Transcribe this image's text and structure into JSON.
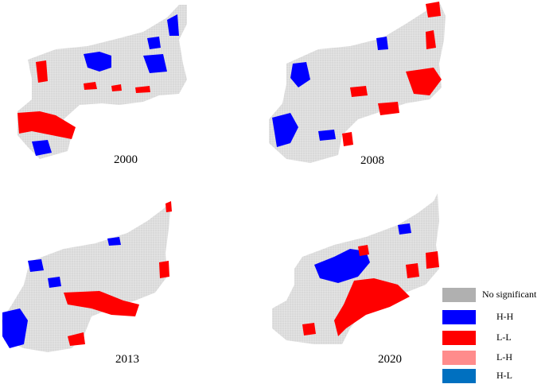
{
  "maps": [
    {
      "year": "2000",
      "patches": [
        {
          "class": "H-H",
          "shape": "upper-left-cluster"
        },
        {
          "class": "H-H",
          "shape": "upper-middle-cluster"
        },
        {
          "class": "H-H",
          "shape": "upper-right-cluster"
        },
        {
          "class": "L-L",
          "shape": "west-lobe-large"
        },
        {
          "class": "L-L",
          "shape": "scattered-central"
        },
        {
          "class": "H-H",
          "shape": "southwest-small"
        }
      ]
    },
    {
      "year": "2008",
      "patches": [
        {
          "class": "H-H",
          "shape": "west-large"
        },
        {
          "class": "H-H",
          "shape": "south-west-lobe"
        },
        {
          "class": "L-L",
          "shape": "east-cluster"
        },
        {
          "class": "L-L",
          "shape": "northeast-tip"
        },
        {
          "class": "L-L",
          "shape": "scattered-central"
        }
      ]
    },
    {
      "year": "2013",
      "patches": [
        {
          "class": "H-H",
          "shape": "southwest-lobe"
        },
        {
          "class": "H-H",
          "shape": "northwest-small"
        },
        {
          "class": "L-L",
          "shape": "south-central"
        },
        {
          "class": "L-L",
          "shape": "east-edge"
        }
      ]
    },
    {
      "year": "2020",
      "patches": [
        {
          "class": "H-H",
          "shape": "central-band"
        },
        {
          "class": "L-L",
          "shape": "south-central-large"
        },
        {
          "class": "L-L",
          "shape": "east-small"
        },
        {
          "class": "H-H",
          "shape": "northeast-small"
        }
      ]
    }
  ],
  "legend": [
    {
      "label": "No significant",
      "color": "#b0b0b0"
    },
    {
      "label": "H-H",
      "color": "#0000ff"
    },
    {
      "label": "L-L",
      "color": "#ff0000"
    },
    {
      "label": "L-H",
      "color": "#ff8c8c"
    },
    {
      "label": "H-L",
      "color": "#0070c0"
    }
  ],
  "colors": {
    "base_fill": "#d9d9d9",
    "grid_line": "#ffffff",
    "H-H": "#0000ff",
    "L-L": "#ff0000"
  }
}
